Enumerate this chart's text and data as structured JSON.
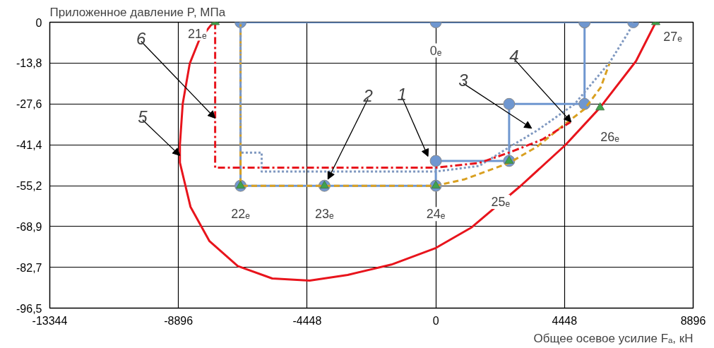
{
  "chart_data": {
    "type": "line",
    "xlabel": "Общее осевое усилие Fₐ, кН",
    "ylabel": "Приложенное давление P, МПа",
    "xlim": [
      -13344,
      8896
    ],
    "xticks": [
      -13344,
      -8896,
      -4448,
      0,
      4448,
      8896
    ],
    "ylim": [
      -96.5,
      0
    ],
    "yticks": [
      {
        "value": -96.5,
        "label": "-96,5"
      },
      {
        "value": -82.7,
        "label": "-82,7"
      },
      {
        "value": -68.9,
        "label": "-68,9"
      },
      {
        "value": -55.2,
        "label": "-55,2"
      },
      {
        "value": -41.4,
        "label": "-41,4"
      },
      {
        "value": -27.6,
        "label": "-27,6"
      },
      {
        "value": -13.8,
        "label": "-13,8"
      },
      {
        "value": 0,
        "label": "0"
      }
    ],
    "grid": true,
    "series": [
      {
        "color": "#6f97d0",
        "line_style": "solid",
        "marker": "circle",
        "x": [
          6824,
          5142,
          0,
          -6750,
          -6750,
          -3850,
          0,
          0,
          2534,
          2534,
          5142,
          5142
        ],
        "values": [
          0,
          0,
          0,
          0,
          -55.2,
          -55.2,
          -55.2,
          -46.8,
          -46.8,
          -27.6,
          -27.6,
          0
        ]
      },
      {
        "color": "#d9a021",
        "line_style": "dashed",
        "marker": "none",
        "x": [
          -6750,
          -6750,
          0,
          1000,
          2534,
          3500,
          4448,
          5142,
          5700,
          6020
        ],
        "values": [
          0,
          -55.2,
          -55.2,
          -53,
          -47.5,
          -42,
          -34.5,
          -29.3,
          -22,
          -13.4
        ]
      },
      {
        "color": "#7f98c0",
        "line_style": "dotted",
        "marker": "none",
        "x": [
          -6750,
          -6750,
          -6020,
          -6020,
          0,
          1500,
          2534,
          3509,
          4800,
          6020,
          6677,
          6824
        ],
        "values": [
          0,
          -44,
          -44,
          -50.4,
          -50.4,
          -48.5,
          -42.2,
          -36.5,
          -27.6,
          -13.4,
          -3.1,
          0
        ]
      },
      {
        "color": "#e8141c",
        "line_style": "dashdot",
        "marker": "none",
        "x": [
          -7628,
          -7628,
          0,
          1500,
          2534,
          3680,
          4655
        ],
        "values": [
          0,
          -49.1,
          -49.1,
          -47.5,
          -44,
          -39.6,
          -33.7
        ]
      },
      {
        "color": "#e8141c",
        "line_style": "solid",
        "marker": "none",
        "x": [
          7603,
          6921,
          5678,
          4484,
          2949,
          1243,
          0,
          -1535,
          -3046,
          -4362,
          -5654,
          -6848,
          -7823,
          -8481,
          -8846,
          -8846,
          -8749,
          -8505,
          -8188,
          -7774,
          -7628
        ],
        "values": [
          0,
          -13.1,
          -28.8,
          -41.4,
          -55.1,
          -69.2,
          -76.2,
          -81.8,
          -85.3,
          -87.2,
          -86.5,
          -82.3,
          -73.9,
          -62.3,
          -47.4,
          -41.4,
          -27.5,
          -13.9,
          -6.2,
          -1,
          0
        ]
      },
      {
        "type": "scatter",
        "color": "#3fa34d",
        "marker": "triangle",
        "x": [
          -7628,
          -6750,
          -3850,
          0,
          2534,
          5678,
          7603
        ],
        "values": [
          0,
          -55.2,
          -55.2,
          -55.2,
          -46.8,
          -28.8,
          0
        ]
      }
    ],
    "annotations": [
      {
        "text": "21ₑ",
        "x": -7628,
        "y": 0
      },
      {
        "text": "0ₑ",
        "x": 0,
        "y": 0
      },
      {
        "text": "22ₑ",
        "x": -6750,
        "y": -55.2
      },
      {
        "text": "23ₑ",
        "x": -3850,
        "y": -55.2
      },
      {
        "text": "24ₑ",
        "x": 0,
        "y": -55.2
      },
      {
        "text": "25ₑ",
        "x": 2534,
        "y": -46.8
      },
      {
        "text": "26ₑ",
        "x": 5678,
        "y": -28.8
      },
      {
        "text": "27ₑ",
        "x": 7603,
        "y": 0
      },
      {
        "text": "1",
        "x": -270,
        "y": -45.3
      },
      {
        "text": "2",
        "x": -3730,
        "y": -53
      },
      {
        "text": "3",
        "x": 3314,
        "y": -35.8
      },
      {
        "text": "4",
        "x": 4679,
        "y": -33.7
      },
      {
        "text": "5",
        "x": -8846,
        "y": -45
      },
      {
        "text": "6",
        "x": -7628,
        "y": -32.4
      }
    ]
  }
}
